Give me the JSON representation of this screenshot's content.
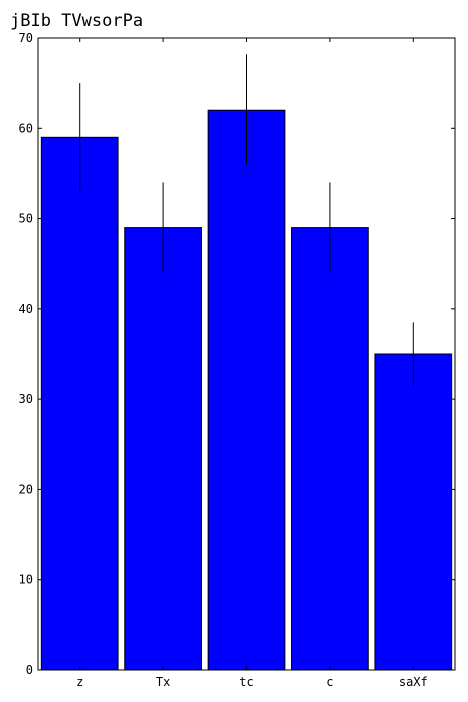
{
  "chart_data": {
    "type": "bar",
    "title": "jBIb TVwsorPa",
    "xlabel": "",
    "ylabel": "",
    "categories": [
      "z",
      "Tx",
      "tc",
      "c",
      "saXf"
    ],
    "values": [
      59,
      49,
      62,
      49,
      35
    ],
    "error_bars": {
      "lower": [
        53,
        44,
        56,
        44,
        31.5
      ],
      "upper": [
        65,
        54,
        68.2,
        54,
        38.5
      ]
    },
    "ylim": [
      0,
      70
    ],
    "yticks": [
      0,
      10,
      20,
      30,
      40,
      50,
      60,
      70
    ],
    "grid": false,
    "legend": false,
    "colors": {
      "bar_fill": "#0000ff",
      "bar_edge": "#000000",
      "error_bar": "#000000",
      "axes": "#000000",
      "background": "#ffffff"
    }
  }
}
